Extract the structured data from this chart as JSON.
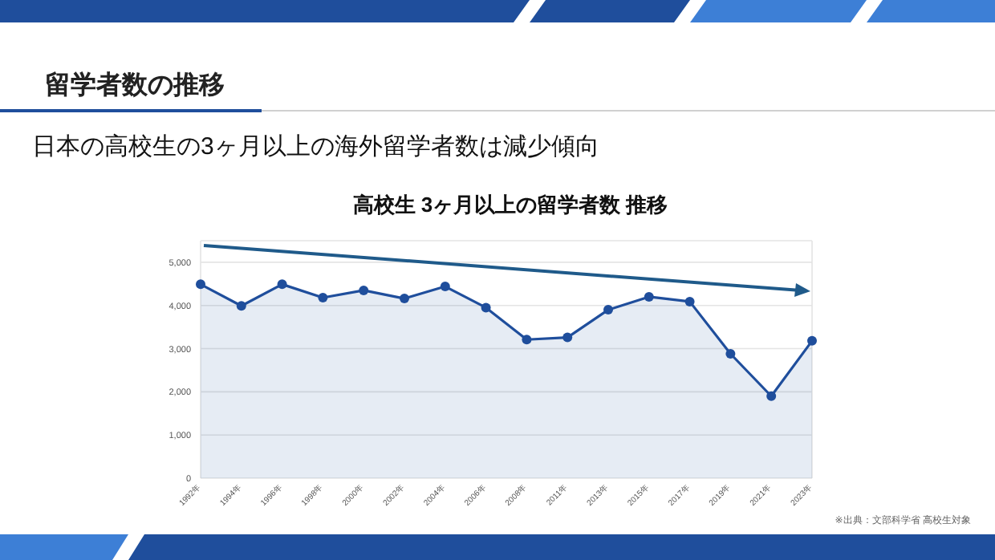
{
  "chart_data": {
    "type": "area",
    "title": "高校生 3ヶ月以上の留学者数 推移",
    "annotations": [
      "留学者数の推移",
      "日本の高校生の3ヶ月以上の海外留学者数は減少傾向",
      "※出典：文部科学省 高校生対象"
    ],
    "categories": [
      "1992年",
      "1994年",
      "1996年",
      "1998年",
      "2000年",
      "2002年",
      "2004年",
      "2006年",
      "2008年",
      "2011年",
      "2013年",
      "2015年",
      "2017年",
      "2019年",
      "2021年",
      "2023年"
    ],
    "series": [
      {
        "color": "#1f4e9c",
        "values": [
          4490,
          3990,
          4490,
          4180,
          4350,
          4160,
          4440,
          3950,
          3210,
          3260,
          3900,
          4200,
          4090,
          2880,
          1900,
          3180
        ]
      }
    ],
    "ylim": [
      0,
      5500
    ],
    "yticks": [
      0,
      {
        "value": 1000,
        "label": "1,000"
      },
      {
        "value": 2000,
        "label": "2,000"
      },
      {
        "value": 3000,
        "label": "3,000"
      },
      {
        "value": 4000,
        "label": "4,000"
      },
      {
        "value": 5000,
        "label": "5,000"
      }
    ],
    "grid": "y",
    "marker": "circle",
    "line_style": "solid"
  }
}
